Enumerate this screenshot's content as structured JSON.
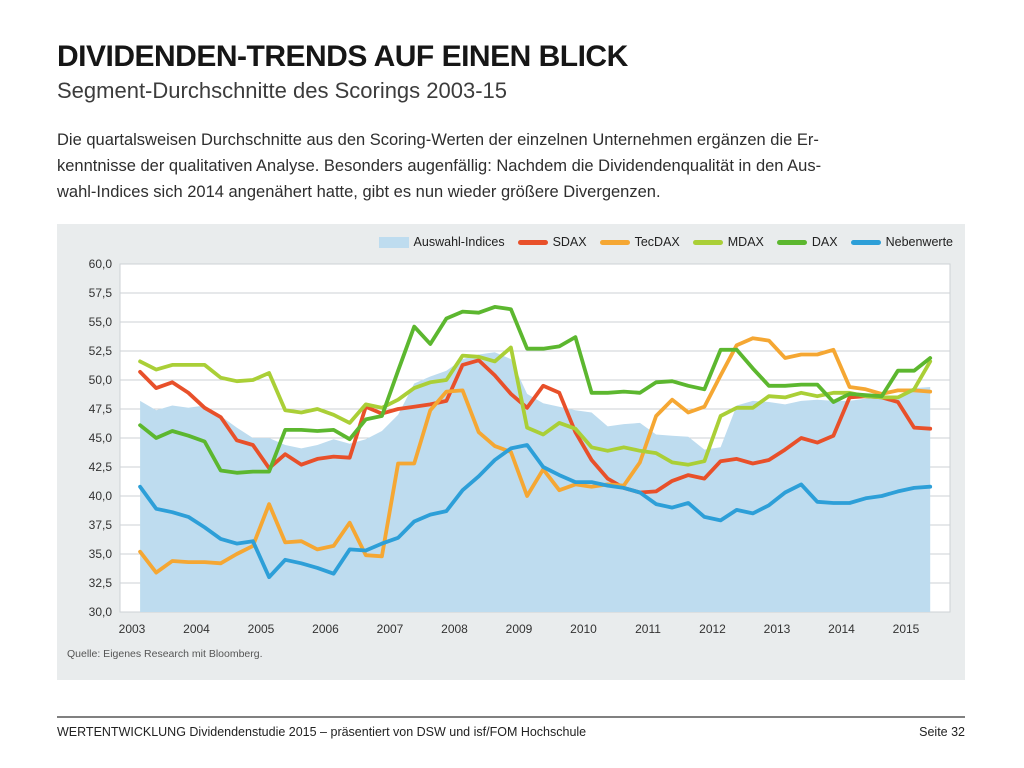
{
  "header": {
    "title": "DIVIDENDEN-TRENDS AUF EINEN BLICK",
    "subtitle": "Segment-Durchschnitte des Scorings 2003-15"
  },
  "intro": {
    "text": "Die quartalsweisen Durchschnitte aus den Scoring-Werten der einzelnen Unternehmen ergänzen die Er-\nkenntnisse der qualitativen Analyse. Besonders augenfällig: Nachdem die Dividendenqualität in den Aus-\nwahl-Indices sich 2014 angenähert hatte, gibt es nun wieder größere Divergenzen."
  },
  "chart": {
    "source": "Quelle: Eigenes Research mit Bloomberg."
  },
  "chart_data": {
    "type": "line",
    "title": "",
    "xlabel": "",
    "ylabel": "",
    "ylim": [
      30,
      60
    ],
    "ytick_step": 2.5,
    "y_tick_labels": [
      "60,0",
      "57,5",
      "55,0",
      "52,5",
      "50,0",
      "47,5",
      "45,0",
      "42,5",
      "40,0",
      "37,5",
      "35,0",
      "32,5",
      "30,0"
    ],
    "x_ticks": [
      2003,
      2004,
      2005,
      2006,
      2007,
      2008,
      2009,
      2010,
      2011,
      2012,
      2013,
      2014,
      2015
    ],
    "x_start": 2003.125,
    "x_step": 0.25,
    "grid": true,
    "legend_position": "top-right",
    "colors": {
      "panel_bg": "#e9eced",
      "plot_bg": "#ffffff",
      "gridline": "#cdd2d5",
      "area_fill": "#bedcef"
    },
    "series": [
      {
        "name": "Auswahl-Indices",
        "type": "area",
        "color": "#bedcef",
        "values": [
          48.2,
          47.4,
          47.8,
          47.6,
          47.8,
          46.9,
          45.9,
          45.0,
          45.0,
          44.4,
          44.1,
          44.4,
          44.9,
          44.5,
          44.9,
          45.6,
          47.0,
          49.7,
          50.3,
          50.8,
          51.8,
          52.2,
          52.4,
          51.8,
          48.8,
          48.0,
          47.7,
          47.4,
          47.2,
          46.0,
          46.2,
          46.3,
          45.3,
          45.2,
          45.1,
          44.0,
          44.2,
          47.8,
          48.2,
          48.1,
          47.9,
          48.2,
          48.3,
          48.2,
          48.2,
          48.4,
          48.5,
          48.6,
          49.3,
          49.4
        ]
      },
      {
        "name": "SDAX",
        "type": "line",
        "color": "#e8502a",
        "values": [
          50.7,
          49.3,
          49.8,
          48.9,
          47.6,
          46.8,
          44.8,
          44.4,
          42.4,
          43.6,
          42.7,
          43.2,
          43.4,
          43.3,
          47.7,
          47.1,
          47.5,
          47.7,
          47.9,
          48.2,
          51.3,
          51.7,
          50.4,
          48.8,
          47.6,
          49.5,
          48.9,
          45.5,
          43.1,
          41.5,
          40.7,
          40.3,
          40.4,
          41.3,
          41.8,
          41.5,
          43.0,
          43.2,
          42.8,
          43.1,
          44.0,
          45.0,
          44.6,
          45.2,
          48.5,
          48.6,
          48.5,
          48.1,
          45.9,
          45.8
        ]
      },
      {
        "name": "TecDAX",
        "type": "line",
        "color": "#f5a733",
        "values": [
          35.2,
          33.4,
          34.4,
          34.3,
          34.3,
          34.2,
          35.0,
          35.7,
          39.3,
          36.0,
          36.1,
          35.4,
          35.7,
          37.7,
          34.9,
          34.8,
          42.8,
          42.8,
          47.4,
          49.0,
          49.1,
          45.5,
          44.3,
          43.8,
          40.0,
          42.3,
          40.5,
          41.0,
          40.8,
          41.0,
          40.9,
          42.9,
          46.9,
          48.3,
          47.2,
          47.7,
          50.4,
          53.0,
          53.6,
          53.4,
          51.9,
          52.2,
          52.2,
          52.6,
          49.4,
          49.2,
          48.8,
          49.1,
          49.1,
          49.0
        ]
      },
      {
        "name": "MDAX",
        "type": "line",
        "color": "#aacf37",
        "values": [
          51.6,
          50.9,
          51.3,
          51.3,
          51.3,
          50.2,
          49.9,
          50.0,
          50.6,
          47.4,
          47.2,
          47.5,
          47.0,
          46.3,
          47.9,
          47.6,
          48.3,
          49.3,
          49.8,
          50.0,
          52.1,
          52.0,
          51.6,
          52.8,
          45.9,
          45.3,
          46.3,
          45.8,
          44.2,
          43.9,
          44.2,
          43.9,
          43.7,
          42.9,
          42.7,
          43.0,
          46.9,
          47.6,
          47.6,
          48.6,
          48.5,
          48.9,
          48.6,
          48.9,
          48.9,
          48.6,
          48.5,
          48.5,
          49.2,
          51.6
        ]
      },
      {
        "name": "DAX",
        "type": "line",
        "color": "#5cb72f",
        "values": [
          46.1,
          45.0,
          45.6,
          45.2,
          44.7,
          42.2,
          42.0,
          42.1,
          42.1,
          45.7,
          45.7,
          45.6,
          45.7,
          44.9,
          46.6,
          46.9,
          50.8,
          54.6,
          53.1,
          55.3,
          55.9,
          55.8,
          56.3,
          56.1,
          52.7,
          52.7,
          52.9,
          53.7,
          48.9,
          48.9,
          49.0,
          48.9,
          49.8,
          49.9,
          49.5,
          49.2,
          52.6,
          52.6,
          51.0,
          49.5,
          49.5,
          49.6,
          49.6,
          48.1,
          48.8,
          48.7,
          48.6,
          50.8,
          50.8,
          51.9
        ]
      },
      {
        "name": "Nebenwerte",
        "type": "line",
        "color": "#2d9fd8",
        "values": [
          40.8,
          38.9,
          38.6,
          38.2,
          37.3,
          36.3,
          35.9,
          36.1,
          33.0,
          34.5,
          34.2,
          33.8,
          33.3,
          35.4,
          35.3,
          35.9,
          36.4,
          37.8,
          38.4,
          38.7,
          40.5,
          41.7,
          43.1,
          44.1,
          44.4,
          42.5,
          41.8,
          41.2,
          41.2,
          40.9,
          40.7,
          40.3,
          39.3,
          39.0,
          39.4,
          38.2,
          37.9,
          38.8,
          38.5,
          39.2,
          40.3,
          41.0,
          39.5,
          39.4,
          39.4,
          39.8,
          40.0,
          40.4,
          40.7,
          40.8
        ]
      }
    ]
  },
  "footer": {
    "left": "WERTENTWICKLUNG Dividendenstudie 2015 – präsentiert von DSW und isf/FOM Hochschule",
    "right": "Seite 32"
  }
}
